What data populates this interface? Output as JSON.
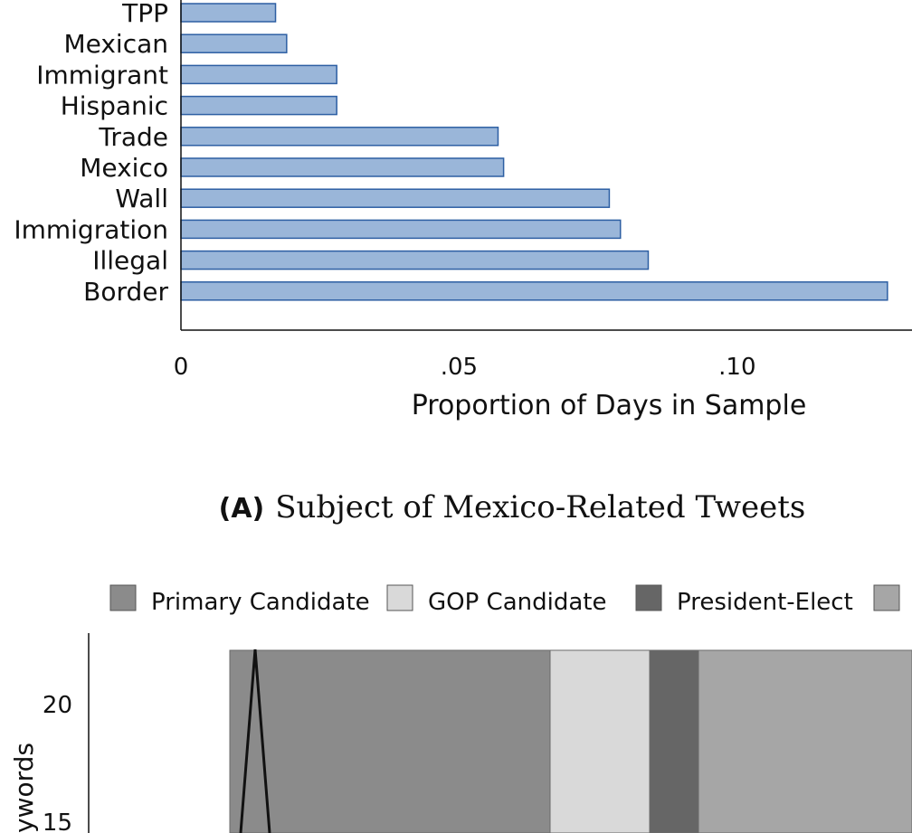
{
  "chart_data": [
    {
      "type": "bar",
      "orientation": "horizontal",
      "categories": [
        "TPP",
        "Mexican",
        "Immigrant",
        "Hispanic",
        "Trade",
        "Mexico",
        "Wall",
        "Immigration",
        "Illegal",
        "Border"
      ],
      "values": [
        0.017,
        0.019,
        0.028,
        0.028,
        0.057,
        0.058,
        0.077,
        0.079,
        0.084,
        0.127
      ],
      "xlabel": "Proportion of Days in Sample",
      "xticks": [
        0,
        0.05,
        0.1
      ],
      "xtick_labels": [
        "0",
        ".05",
        ".10"
      ],
      "xlim": [
        0,
        0.128
      ],
      "caption_tag": "(A)",
      "caption": "Subject of Mexico-Related Tweets",
      "colors": {
        "fill": "#9ab6d9",
        "stroke": "#2d5fa3"
      }
    },
    {
      "type": "area",
      "legend": [
        {
          "name": "Primary Candidate",
          "color": "#8b8b8b"
        },
        {
          "name": "GOP Candidate",
          "color": "#d9d9d9"
        },
        {
          "name": "President-Elect",
          "color": "#666666"
        },
        {
          "name": "",
          "color": "#a6a6a6"
        }
      ],
      "ylabel": "ywords",
      "yticks": [
        15,
        20
      ],
      "legend_position": "top"
    }
  ]
}
